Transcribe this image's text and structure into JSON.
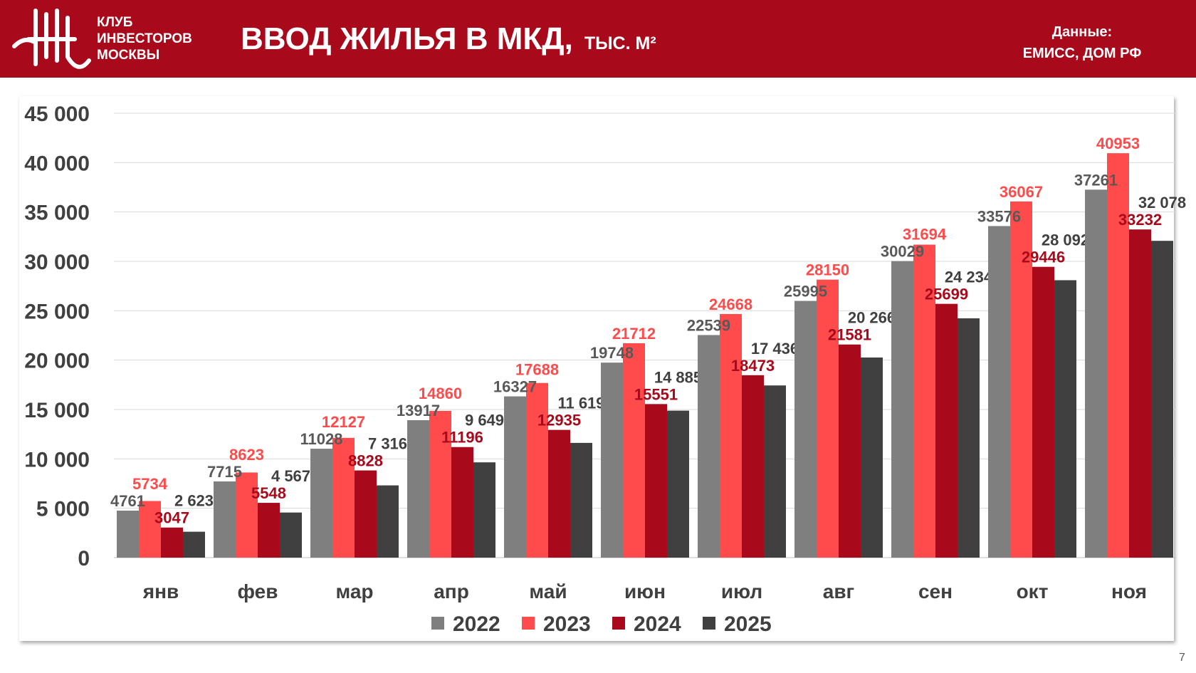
{
  "header": {
    "club": [
      "КЛУБ",
      "ИНВЕСТОРОВ",
      "МОСКВЫ"
    ],
    "title": "ВВОД ЖИЛЬЯ В МКД,",
    "unit": "ТЫС. М²",
    "source_label": "Данные:",
    "source": "ЕМИСС, ДОМ РФ"
  },
  "page_number": "7",
  "chart_data": {
    "type": "bar",
    "categories": [
      "янв",
      "фев",
      "мар",
      "апр",
      "май",
      "июн",
      "июл",
      "авг",
      "сен",
      "окт",
      "ноя"
    ],
    "ylim": [
      0,
      45000
    ],
    "yticks": [
      "0",
      "5 000",
      "10 000",
      "15 000",
      "20 000",
      "25 000",
      "30 000",
      "35 000",
      "40 000",
      "45 000"
    ],
    "grid": true,
    "legend": "bottom",
    "series": [
      {
        "name": "2022",
        "color": "#7f7f7f",
        "label_color": "#595959",
        "values": [
          4761,
          7715,
          11028,
          13917,
          16327,
          19748,
          22539,
          25995,
          30029,
          33576,
          37261
        ],
        "labels": [
          "4761",
          "7715",
          "11028",
          "13917",
          "16327",
          "19748",
          "22539",
          "25995",
          "30029",
          "33576",
          "37261"
        ]
      },
      {
        "name": "2023",
        "color": "#ff4b4b",
        "label_color": "#ff4b4b",
        "values": [
          5734,
          8623,
          12127,
          14860,
          17688,
          21712,
          24668,
          28150,
          31694,
          36067,
          40953
        ],
        "labels": [
          "5734",
          "8623",
          "12127",
          "14860",
          "17688",
          "21712",
          "24668",
          "28150",
          "31694",
          "36067",
          "40953"
        ]
      },
      {
        "name": "2024",
        "color": "#a8091b",
        "label_color": "#a8091b",
        "values": [
          3047,
          5548,
          8828,
          11196,
          12935,
          15551,
          18473,
          21581,
          25699,
          29446,
          33232
        ],
        "labels": [
          "3047",
          "5548",
          "8828",
          "11196",
          "12935",
          "15551",
          "18473",
          "21581",
          "25699",
          "29446",
          "33232"
        ]
      },
      {
        "name": "2025",
        "color": "#404040",
        "label_color": "#404040",
        "values": [
          2623,
          4567,
          7316,
          9649,
          11619,
          14885,
          17436,
          20266,
          24234,
          28092,
          32078
        ],
        "labels": [
          "2 623",
          "4 567",
          "7 316",
          "9 649",
          "11 619",
          "14 885",
          "17 436",
          "20 266",
          "24 234",
          "28 092",
          "32 078"
        ]
      }
    ]
  }
}
